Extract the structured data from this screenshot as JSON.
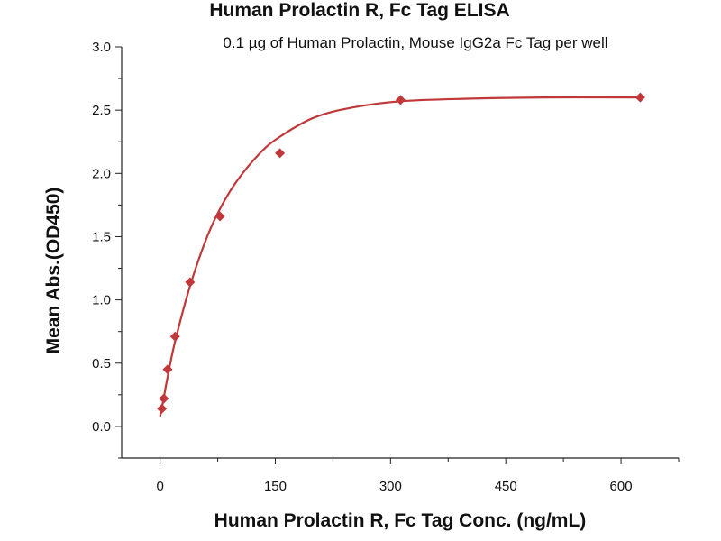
{
  "chart_data": {
    "type": "scatter",
    "title": "Human Prolactin R, Fc Tag ELISA",
    "subtitle": "0.1 µg of Human Prolactin, Mouse IgG2a Fc Tag  per well",
    "xlabel": "Human Prolactin R, Fc Tag Conc. (ng/mL)",
    "ylabel": "Mean Abs.(OD450)",
    "xlim": [
      -50,
      675
    ],
    "ylim": [
      -0.25,
      3.0
    ],
    "x_ticks": [
      0,
      150,
      300,
      450,
      600
    ],
    "x_tick_labels": [
      "0",
      "150",
      "300",
      "450",
      "600"
    ],
    "y_ticks": [
      0.0,
      0.5,
      1.0,
      1.5,
      2.0,
      2.5,
      3.0
    ],
    "y_tick_labels": [
      "0.0",
      "0.5",
      "1.0",
      "1.5",
      "2.0",
      "2.5",
      "3.0"
    ],
    "color": "#c0383a",
    "series": [
      {
        "x": [
          2.4,
          4.9,
          9.8,
          19.5,
          39,
          78,
          156,
          313,
          625
        ],
        "y": [
          0.14,
          0.22,
          0.45,
          0.71,
          1.14,
          1.66,
          2.16,
          2.58,
          2.6
        ]
      }
    ],
    "fit_curve": {
      "x": [
        0,
        2.4,
        4.9,
        9.8,
        19.5,
        39,
        60,
        78,
        100,
        130,
        156,
        200,
        250,
        313,
        400,
        500,
        625
      ],
      "y": [
        0.08,
        0.15,
        0.23,
        0.39,
        0.67,
        1.11,
        1.48,
        1.72,
        1.94,
        2.16,
        2.29,
        2.44,
        2.52,
        2.57,
        2.59,
        2.6,
        2.6
      ]
    }
  }
}
